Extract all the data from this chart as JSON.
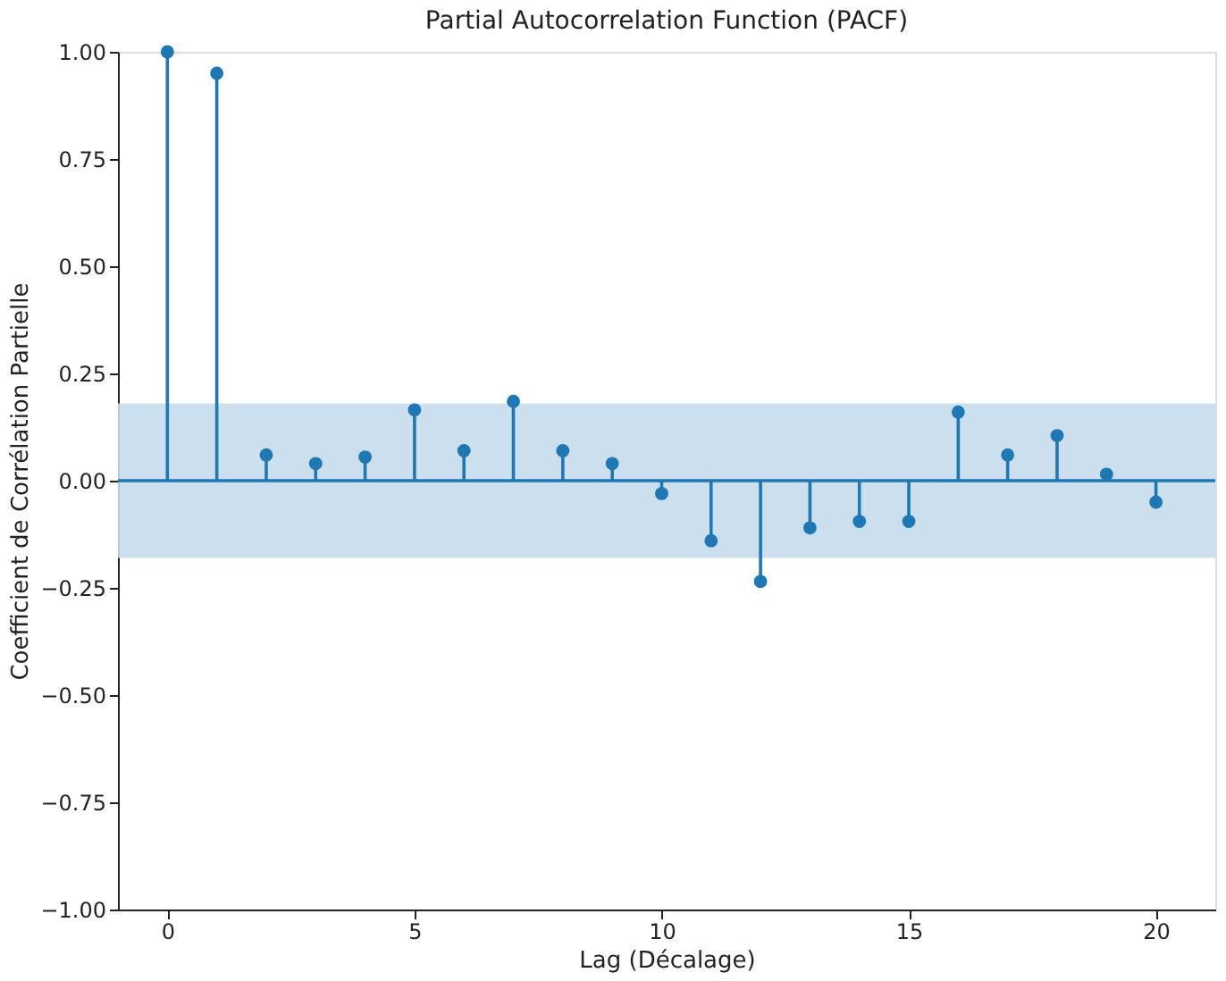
{
  "chart_data": {
    "type": "lollipop",
    "title": "Partial Autocorrelation Function (PACF)",
    "xlabel": "Lag (Décalage)",
    "ylabel": "Coefficient de Corrélation Partielle",
    "x": [
      0,
      1,
      2,
      3,
      4,
      5,
      6,
      7,
      8,
      9,
      10,
      11,
      12,
      13,
      14,
      15,
      16,
      17,
      18,
      19,
      20
    ],
    "series": [
      {
        "color": "#1f77b4",
        "values": [
          1.0,
          0.95,
          0.06,
          0.04,
          0.055,
          0.165,
          0.07,
          0.185,
          0.07,
          0.04,
          -0.03,
          -0.14,
          -0.235,
          -0.11,
          -0.095,
          -0.095,
          0.16,
          0.06,
          0.105,
          0.015,
          -0.05
        ]
      }
    ],
    "xlim": [
      -1,
      21.2
    ],
    "xticks": [
      0,
      5,
      10,
      15,
      20
    ],
    "ylim": [
      -1,
      1
    ],
    "yticks": [
      {
        "value": -1,
        "label": "−1.00"
      },
      {
        "value": -0.75,
        "label": "−0.75"
      },
      {
        "value": -0.5,
        "label": "−0.50"
      },
      {
        "value": -0.25,
        "label": "−0.25"
      },
      {
        "value": 0,
        "label": "0.00"
      },
      {
        "value": 0.25,
        "label": "0.25"
      },
      {
        "value": 0.5,
        "label": "0.50"
      },
      {
        "value": 0.75,
        "label": "0.75"
      },
      {
        "value": 1,
        "label": "1.00"
      }
    ],
    "ref_lines": [
      {
        "axis": "y",
        "value": 0,
        "color": "#1f77b4"
      }
    ],
    "bands": [
      {
        "axis": "y",
        "from": -0.18,
        "to": 0.18,
        "color": "#c6dbec"
      }
    ],
    "marker": "circle",
    "grid": false
  }
}
